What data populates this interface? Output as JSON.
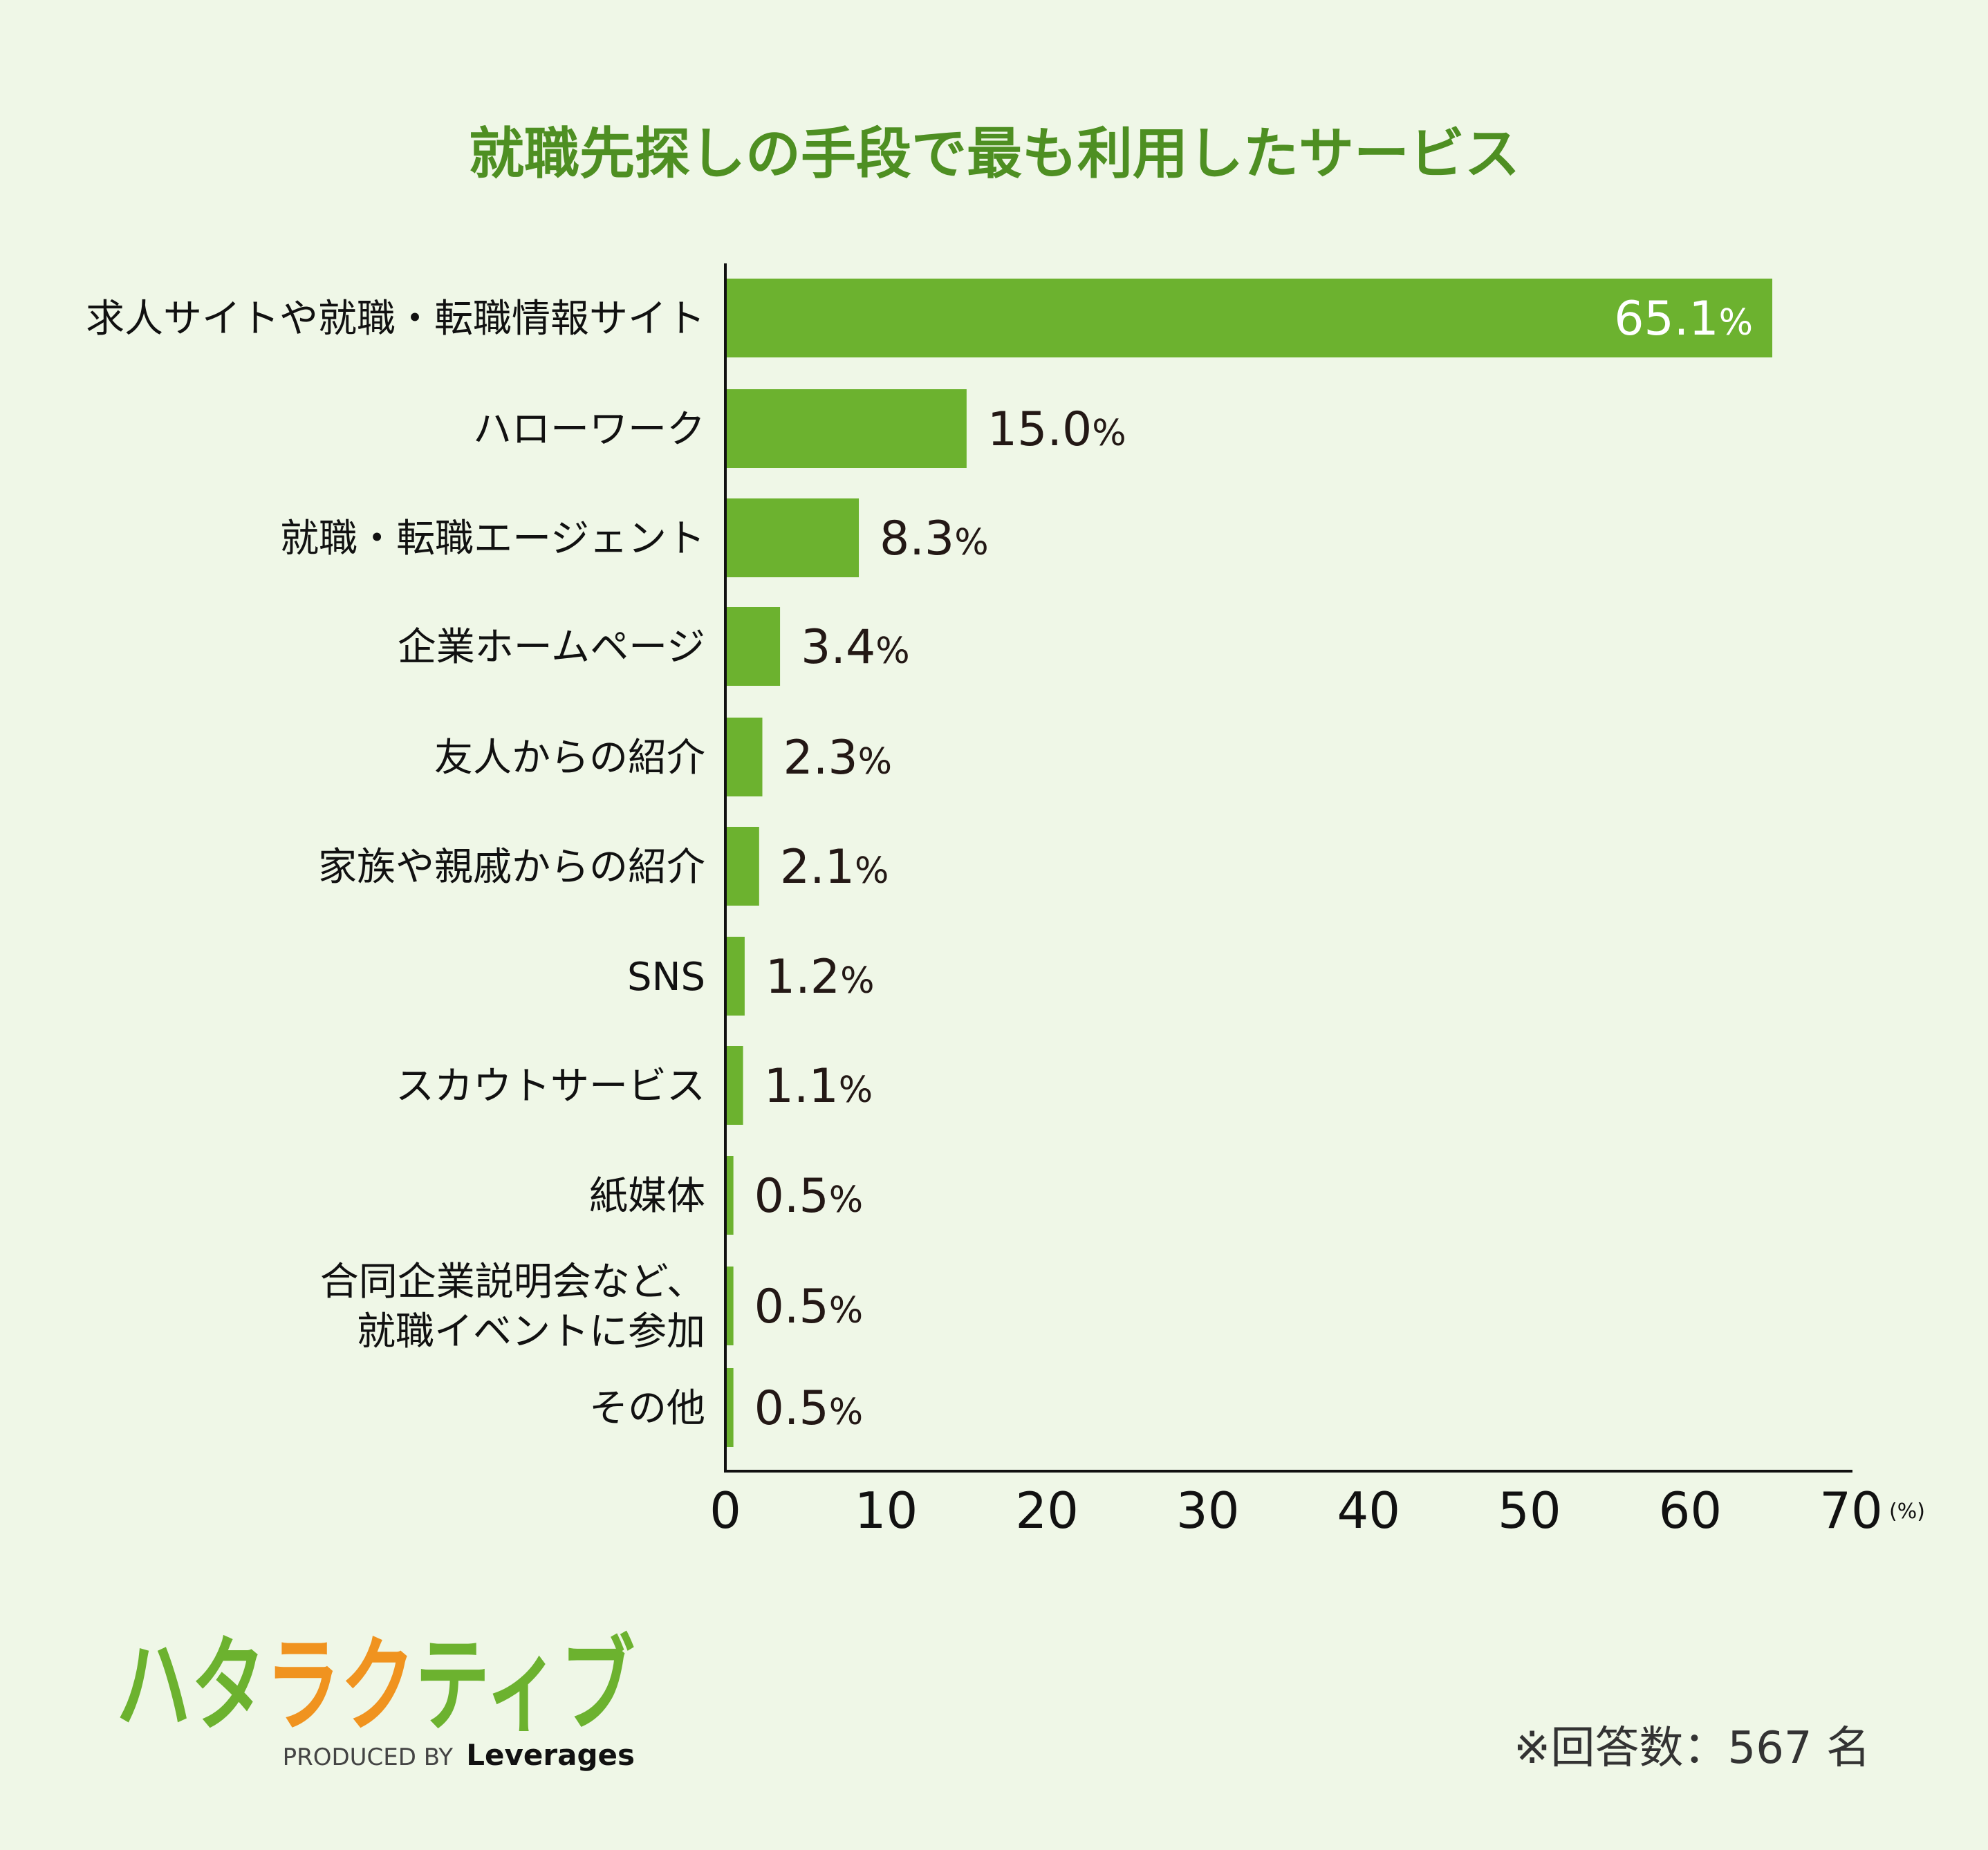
{
  "chart_data": {
    "type": "bar",
    "orientation": "horizontal",
    "title": "就職先探しの手段で最も利用したサービス",
    "categories": [
      [
        "求人サイトや就職・転職情報サイト"
      ],
      [
        "ハローワーク"
      ],
      [
        "就職・転職エージェント"
      ],
      [
        "企業ホームページ"
      ],
      [
        "友人からの紹介"
      ],
      [
        "家族や親戚からの紹介"
      ],
      [
        "SNS"
      ],
      [
        "スカウトサービス"
      ],
      [
        "紙媒体"
      ],
      [
        "合同企業説明会など、",
        "就職イベントに参加"
      ],
      [
        "その他"
      ]
    ],
    "values": [
      65.1,
      15.0,
      8.3,
      3.4,
      2.3,
      2.1,
      1.2,
      1.1,
      0.5,
      0.5,
      0.5
    ],
    "value_labels": [
      "65.1",
      "15.0",
      "8.3",
      "3.4",
      "2.3",
      "2.1",
      "1.2",
      "1.1",
      "0.5",
      "0.5",
      "0.5"
    ],
    "value_suffix": "%",
    "xlim": [
      0,
      70
    ],
    "xticks": [
      "0",
      "10",
      "20",
      "30",
      "40",
      "50",
      "60",
      "70"
    ],
    "xunit": "(%)",
    "grid": false,
    "legend": "none"
  },
  "colors": {
    "background": "#eff7e7",
    "bar": "#6cb22f",
    "title": "#4e8f22",
    "logo_green": "#6cb22f",
    "logo_orange": "#f0931f"
  },
  "footnote": "※回答数：567 名",
  "logo": {
    "wordmark": "ハタラクティブ",
    "produced_by": "PRODUCED BY",
    "company": "Leverages"
  }
}
